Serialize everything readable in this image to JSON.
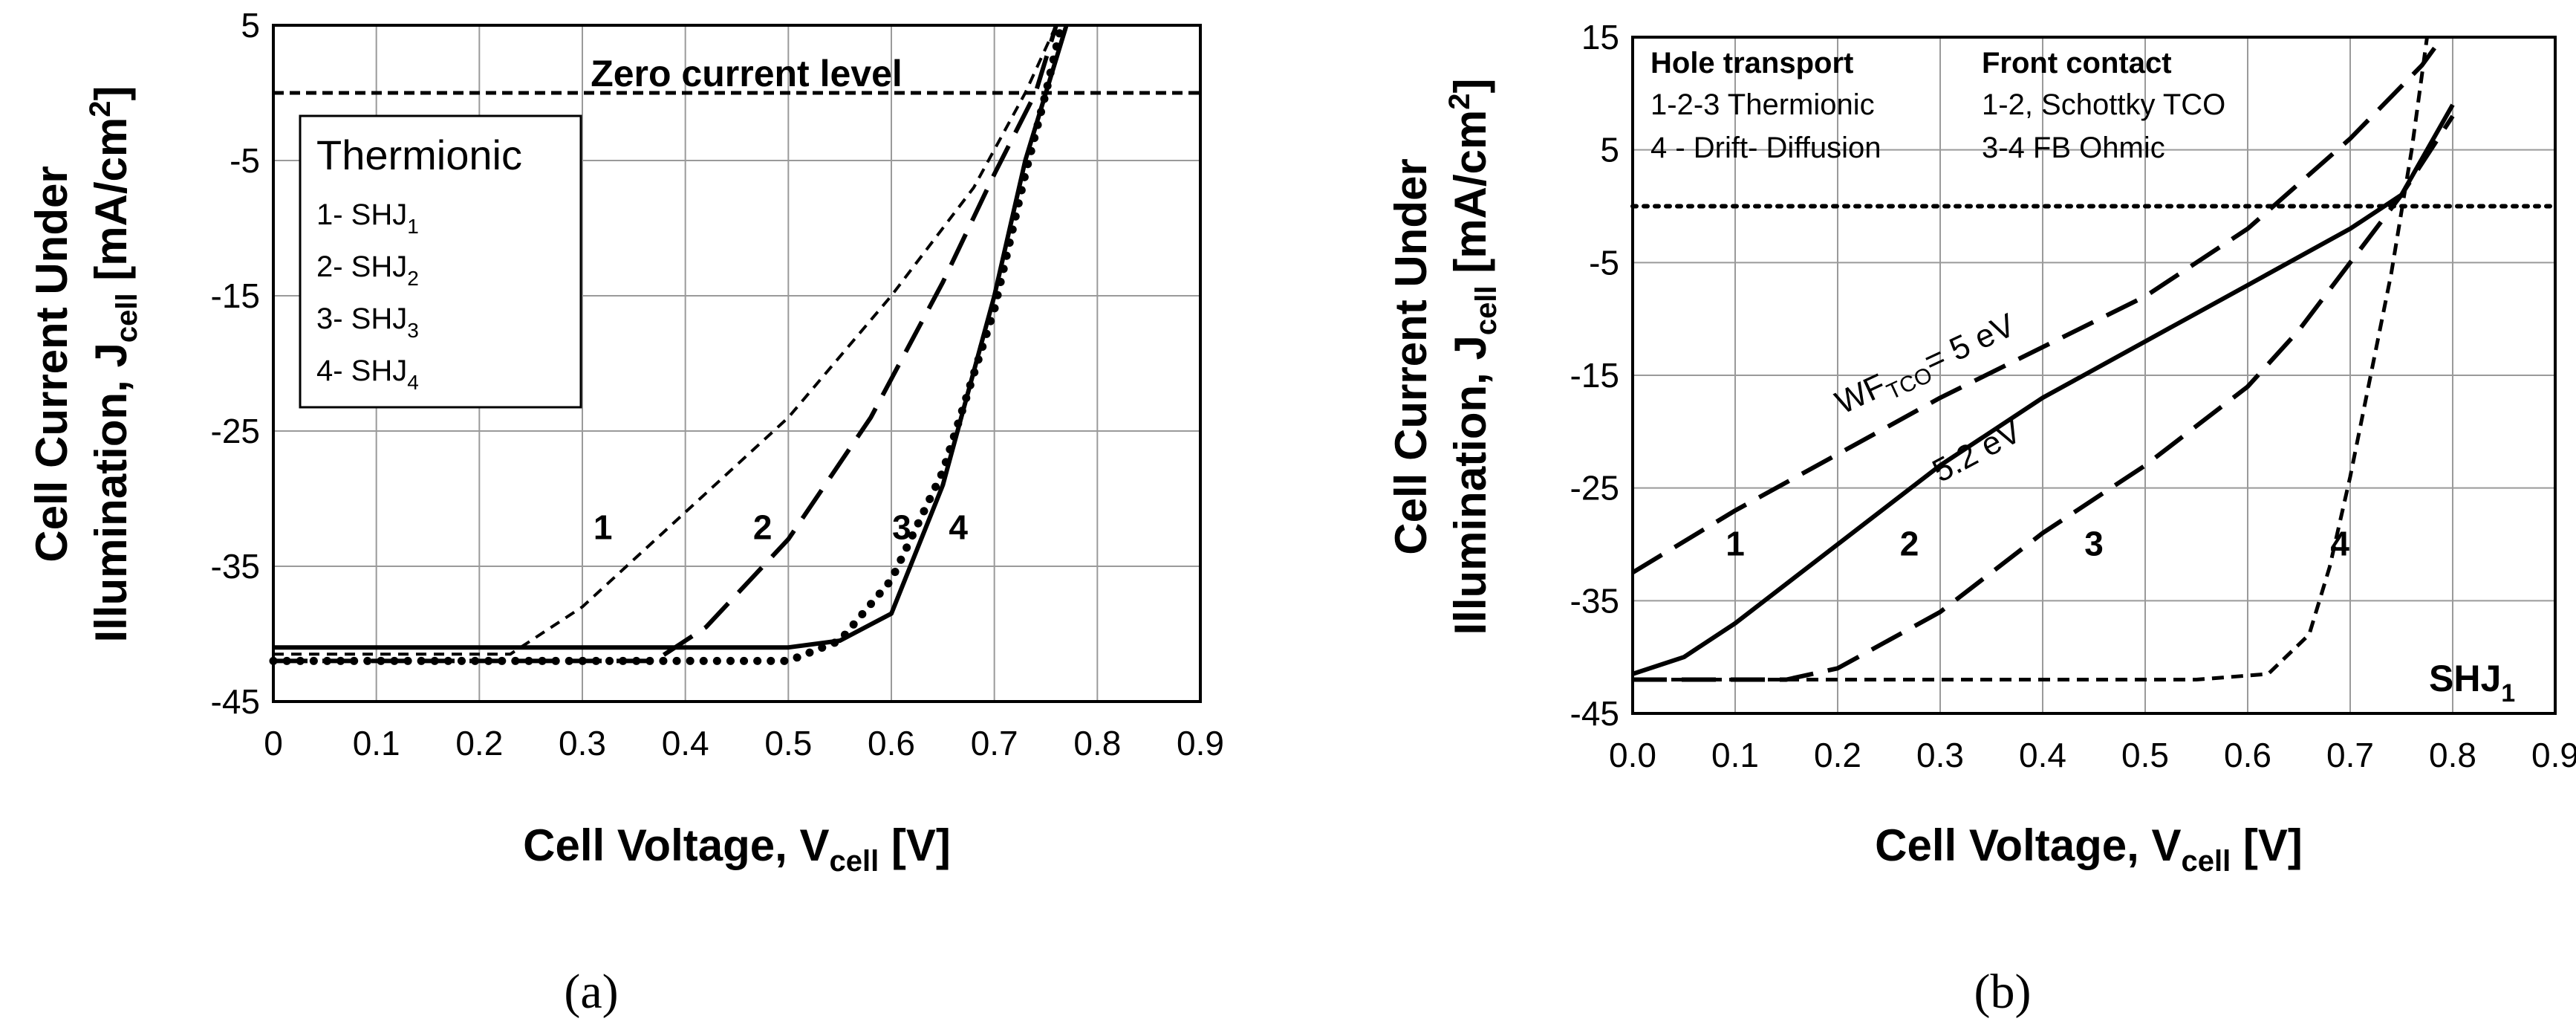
{
  "chart_data": [
    {
      "type": "line",
      "panel": "a",
      "panel_label": "(a)",
      "xlabel": "Cell Voltage, V",
      "xlabel_sub": "cell",
      "xlabel_unit": " [V]",
      "ylabel_line1": "Cell Current Under",
      "ylabel_line2": "Illumination, J",
      "ylabel_sub": "cell",
      "ylabel_unit": " [mA/cm",
      "ylabel_sup": "2",
      "ylabel_close": "]",
      "xlim": [
        0,
        0.9
      ],
      "ylim": [
        -45,
        5
      ],
      "xticks": [
        "0",
        "0.1",
        "0.2",
        "0.3",
        "0.4",
        "0.5",
        "0.6",
        "0.7",
        "0.8",
        "0.9"
      ],
      "yticks": [
        "5",
        "-5",
        "-15",
        "-25",
        "-35",
        "-45"
      ],
      "zero_line_label": "Zero current level",
      "legend": {
        "title": "Thermionic",
        "entries": [
          {
            "text": "1- SHJ",
            "sub": "1"
          },
          {
            "text": "2- SHJ",
            "sub": "2"
          },
          {
            "text": "3- SHJ",
            "sub": "3"
          },
          {
            "text": "4- SHJ",
            "sub": "4"
          }
        ]
      },
      "series": [
        {
          "name": "1",
          "style": "short-dash-thin",
          "x": [
            0,
            0.23,
            0.3,
            0.4,
            0.5,
            0.6,
            0.68,
            0.73,
            0.76
          ],
          "y": [
            -41.5,
            -41.5,
            -38,
            -31,
            -24,
            -15,
            -7,
            0,
            5
          ]
        },
        {
          "name": "2",
          "style": "long-dash",
          "x": [
            0,
            0.37,
            0.42,
            0.5,
            0.58,
            0.65,
            0.7,
            0.74,
            0.76
          ],
          "y": [
            -42,
            -42,
            -39.5,
            -33,
            -24,
            -14,
            -6,
            0,
            5
          ]
        },
        {
          "name": "3",
          "style": "dotted",
          "x": [
            0,
            0.5,
            0.55,
            0.6,
            0.65,
            0.7,
            0.73,
            0.75,
            0.765
          ],
          "y": [
            -42,
            -42,
            -40.5,
            -36,
            -28,
            -16,
            -6,
            0,
            5
          ]
        },
        {
          "name": "4",
          "style": "solid",
          "x": [
            0,
            0.5,
            0.55,
            0.6,
            0.65,
            0.7,
            0.73,
            0.75,
            0.77
          ],
          "y": [
            -41,
            -41,
            -40.5,
            -38.5,
            -29,
            -15,
            -5,
            0,
            5
          ]
        }
      ],
      "curve_labels": [
        {
          "text": "1",
          "x": 0.32,
          "y": -33
        },
        {
          "text": "2",
          "x": 0.475,
          "y": -33
        },
        {
          "text": "3",
          "x": 0.61,
          "y": -33
        },
        {
          "text": "4",
          "x": 0.665,
          "y": -33
        }
      ]
    },
    {
      "type": "line",
      "panel": "b",
      "panel_label": "(b)",
      "xlabel": "Cell Voltage, V",
      "xlabel_sub": "cell",
      "xlabel_unit": " [V]",
      "ylabel_line1": "Cell Current Under",
      "ylabel_line2": "Illumination, J",
      "ylabel_sub": "cell",
      "ylabel_unit": " [mA/cm",
      "ylabel_sup": "2",
      "ylabel_close": "]",
      "xlim": [
        0,
        0.9
      ],
      "ylim": [
        -45,
        15
      ],
      "xticks": [
        "0.0",
        "0.1",
        "0.2",
        "0.3",
        "0.4",
        "0.5",
        "0.6",
        "0.7",
        "0.8",
        "0.9"
      ],
      "yticks": [
        "15",
        "5",
        "-5",
        "-15",
        "-25",
        "-35",
        "-45"
      ],
      "legend_headers": [
        "Hole transport",
        "Front contact"
      ],
      "legend_col1": [
        "1-2-3 Thermionic",
        "4 - Drift- Diffusion"
      ],
      "legend_col2": [
        "1-2, Schottky TCO",
        "3-4 FB Ohmic"
      ],
      "wf_label": {
        "pre": "WF",
        "sub": "TCO",
        "post": "= 5 eV"
      },
      "label_52": "5.2 eV",
      "corner_label": {
        "text": "SHJ",
        "sub": "1"
      },
      "series": [
        {
          "name": "1",
          "style": "long-dash",
          "x": [
            0,
            0.1,
            0.2,
            0.3,
            0.4,
            0.5,
            0.6,
            0.7,
            0.77,
            0.79
          ],
          "y": [
            -32.5,
            -27,
            -22,
            -17,
            -12.5,
            -8,
            -2,
            6,
            12.5,
            15
          ]
        },
        {
          "name": "2",
          "style": "solid",
          "x": [
            0,
            0.05,
            0.1,
            0.2,
            0.3,
            0.4,
            0.5,
            0.6,
            0.7,
            0.75,
            0.8
          ],
          "y": [
            -41.5,
            -40,
            -37,
            -30,
            -23,
            -17,
            -12,
            -7,
            -2,
            1,
            9
          ]
        },
        {
          "name": "3",
          "style": "long-dash",
          "x": [
            0,
            0.15,
            0.2,
            0.3,
            0.4,
            0.5,
            0.6,
            0.65,
            0.7,
            0.75,
            0.8
          ],
          "y": [
            -42,
            -42,
            -41,
            -36,
            -29,
            -23,
            -16,
            -11,
            -5,
            1,
            8
          ]
        },
        {
          "name": "4",
          "style": "short-dash",
          "x": [
            0,
            0.55,
            0.62,
            0.66,
            0.68,
            0.7,
            0.72,
            0.74,
            0.76,
            0.775
          ],
          "y": [
            -42,
            -42,
            -41.5,
            -38,
            -32,
            -24,
            -15,
            -6,
            5,
            15
          ]
        }
      ],
      "curve_labels": [
        {
          "text": "1",
          "x": 0.1,
          "y": -31
        },
        {
          "text": "2",
          "x": 0.27,
          "y": -31
        },
        {
          "text": "3",
          "x": 0.45,
          "y": -31
        },
        {
          "text": "4",
          "x": 0.69,
          "y": -31
        }
      ]
    }
  ]
}
